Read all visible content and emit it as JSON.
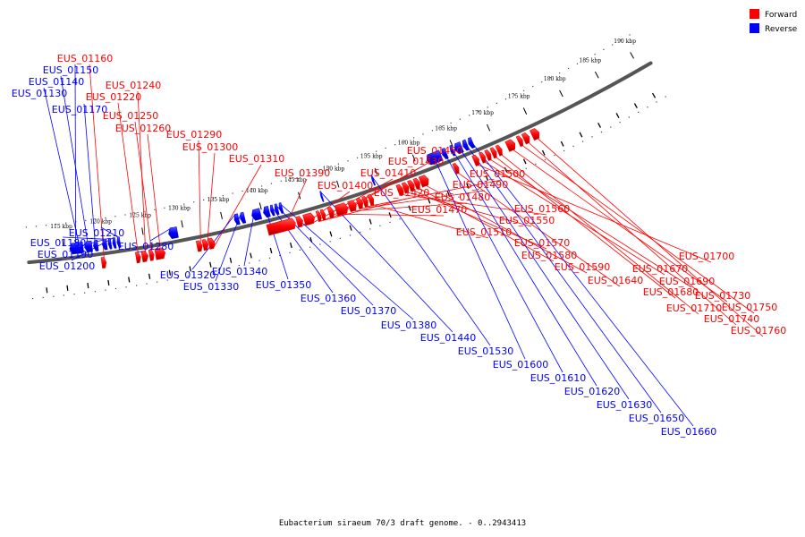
{
  "legend": {
    "forward": {
      "label": "Forward",
      "color": "#ff0000"
    },
    "reverse": {
      "label": "Reverse",
      "color": "#0000ff"
    }
  },
  "caption": "Eubacterium siraeum 70/3 draft genome. - 0..2943413",
  "scale": {
    "tick_labels": [
      "115 kbp",
      "120 kbp",
      "125 kbp",
      "130 kbp",
      "135 kbp",
      "140 kbp",
      "145 kbp",
      "150 kbp",
      "155 kbp",
      "160 kbp",
      "165 kbp",
      "170 kbp",
      "175 kbp",
      "180 kbp",
      "185 kbp",
      "190 kbp"
    ]
  },
  "genes": [
    {
      "id": "EUS_01160",
      "strand": "forward"
    },
    {
      "id": "EUS_01150",
      "strand": "reverse"
    },
    {
      "id": "EUS_01140",
      "strand": "reverse"
    },
    {
      "id": "EUS_01130",
      "strand": "reverse"
    },
    {
      "id": "EUS_01170",
      "strand": "reverse"
    },
    {
      "id": "EUS_01240",
      "strand": "forward"
    },
    {
      "id": "EUS_01220",
      "strand": "forward"
    },
    {
      "id": "EUS_01250",
      "strand": "forward"
    },
    {
      "id": "EUS_01260",
      "strand": "forward"
    },
    {
      "id": "EUS_01290",
      "strand": "forward"
    },
    {
      "id": "EUS_01300",
      "strand": "forward"
    },
    {
      "id": "EUS_01310",
      "strand": "forward"
    },
    {
      "id": "EUS_01390",
      "strand": "forward"
    },
    {
      "id": "EUS_01400",
      "strand": "forward"
    },
    {
      "id": "EUS_01410",
      "strand": "forward"
    },
    {
      "id": "EUS_01420",
      "strand": "forward"
    },
    {
      "id": "EUS_01430",
      "strand": "forward"
    },
    {
      "id": "EUS_01450",
      "strand": "forward"
    },
    {
      "id": "EUS_01470",
      "strand": "forward"
    },
    {
      "id": "EUS_01480",
      "strand": "forward"
    },
    {
      "id": "EUS_01490",
      "strand": "forward"
    },
    {
      "id": "EUS_01500",
      "strand": "forward"
    },
    {
      "id": "EUS_01510",
      "strand": "forward"
    },
    {
      "id": "EUS_01560",
      "strand": "forward"
    },
    {
      "id": "EUS_01550",
      "strand": "forward"
    },
    {
      "id": "EUS_01570",
      "strand": "forward"
    },
    {
      "id": "EUS_01580",
      "strand": "forward"
    },
    {
      "id": "EUS_01590",
      "strand": "forward"
    },
    {
      "id": "EUS_01640",
      "strand": "forward"
    },
    {
      "id": "EUS_01700",
      "strand": "forward"
    },
    {
      "id": "EUS_01670",
      "strand": "forward"
    },
    {
      "id": "EUS_01690",
      "strand": "forward"
    },
    {
      "id": "EUS_01680",
      "strand": "forward"
    },
    {
      "id": "EUS_01710",
      "strand": "forward"
    },
    {
      "id": "EUS_01730",
      "strand": "forward"
    },
    {
      "id": "EUS_01750",
      "strand": "forward"
    },
    {
      "id": "EUS_01740",
      "strand": "forward"
    },
    {
      "id": "EUS_01760",
      "strand": "forward"
    },
    {
      "id": "EUS_01180",
      "strand": "reverse"
    },
    {
      "id": "EUS_01190",
      "strand": "reverse"
    },
    {
      "id": "EUS_01200",
      "strand": "reverse"
    },
    {
      "id": "EUS_01210",
      "strand": "reverse"
    },
    {
      "id": "EUS_01280",
      "strand": "reverse"
    },
    {
      "id": "EUS_01320",
      "strand": "reverse"
    },
    {
      "id": "EUS_01330",
      "strand": "reverse"
    },
    {
      "id": "EUS_01340",
      "strand": "reverse"
    },
    {
      "id": "EUS_01350",
      "strand": "reverse"
    },
    {
      "id": "EUS_01360",
      "strand": "reverse"
    },
    {
      "id": "EUS_01370",
      "strand": "reverse"
    },
    {
      "id": "EUS_01380",
      "strand": "reverse"
    },
    {
      "id": "EUS_01440",
      "strand": "reverse"
    },
    {
      "id": "EUS_01530",
      "strand": "reverse"
    },
    {
      "id": "EUS_01600",
      "strand": "reverse"
    },
    {
      "id": "EUS_01610",
      "strand": "reverse"
    },
    {
      "id": "EUS_01620",
      "strand": "reverse"
    },
    {
      "id": "EUS_01630",
      "strand": "reverse"
    },
    {
      "id": "EUS_01650",
      "strand": "reverse"
    },
    {
      "id": "EUS_01660",
      "strand": "reverse"
    }
  ]
}
